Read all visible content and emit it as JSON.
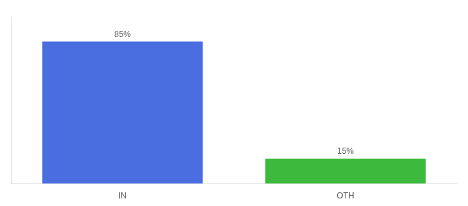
{
  "chart_data": {
    "type": "bar",
    "categories": [
      "IN",
      "OTH"
    ],
    "values": [
      85,
      15
    ],
    "value_labels": [
      "85%",
      "15%"
    ],
    "colors": [
      "#4a6ee0",
      "#3dba3d"
    ],
    "ylim": [
      0,
      100
    ],
    "tick_labels": "x",
    "grid": false,
    "data_labels": true
  }
}
